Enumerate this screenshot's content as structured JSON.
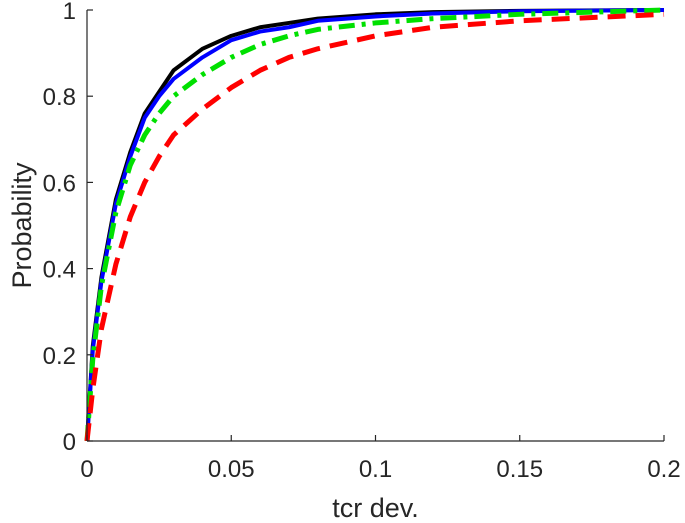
{
  "chart_data": {
    "type": "line",
    "title": "",
    "xlabel": "tcr dev.",
    "ylabel": "Probability",
    "xlim": [
      0,
      0.2
    ],
    "ylim": [
      0,
      1
    ],
    "xticks": [
      0,
      0.05,
      0.1,
      0.15,
      0.2
    ],
    "xtick_labels": [
      "0",
      "0.05",
      "0.1",
      "0.15",
      "0.2"
    ],
    "yticks": [
      0,
      0.2,
      0.4,
      0.6,
      0.8,
      1
    ],
    "ytick_labels": [
      "0",
      "0.2",
      "0.4",
      "0.6",
      "0.8",
      "1"
    ],
    "grid": false,
    "legend": "none",
    "x": [
      0,
      0.002,
      0.005,
      0.01,
      0.015,
      0.02,
      0.025,
      0.03,
      0.04,
      0.05,
      0.06,
      0.07,
      0.08,
      0.1,
      0.12,
      0.15,
      0.2
    ],
    "series": [
      {
        "color": "#000000",
        "style": "solid",
        "values": [
          0,
          0.22,
          0.38,
          0.56,
          0.67,
          0.76,
          0.81,
          0.86,
          0.91,
          0.94,
          0.96,
          0.97,
          0.98,
          0.99,
          0.995,
          0.998,
          1.0
        ]
      },
      {
        "color": "#0000ff",
        "style": "solid",
        "values": [
          0,
          0.21,
          0.37,
          0.55,
          0.66,
          0.75,
          0.8,
          0.84,
          0.89,
          0.93,
          0.95,
          0.96,
          0.975,
          0.985,
          0.992,
          0.997,
          1.0
        ]
      },
      {
        "color": "#00e000",
        "style": "dashdot",
        "values": [
          0,
          0.19,
          0.36,
          0.53,
          0.64,
          0.71,
          0.76,
          0.8,
          0.85,
          0.89,
          0.92,
          0.94,
          0.955,
          0.97,
          0.98,
          0.99,
          1.0
        ]
      },
      {
        "color": "#ff0000",
        "style": "dashed",
        "values": [
          0,
          0.12,
          0.26,
          0.41,
          0.52,
          0.6,
          0.66,
          0.71,
          0.77,
          0.82,
          0.86,
          0.89,
          0.91,
          0.94,
          0.96,
          0.975,
          0.99
        ]
      }
    ]
  }
}
